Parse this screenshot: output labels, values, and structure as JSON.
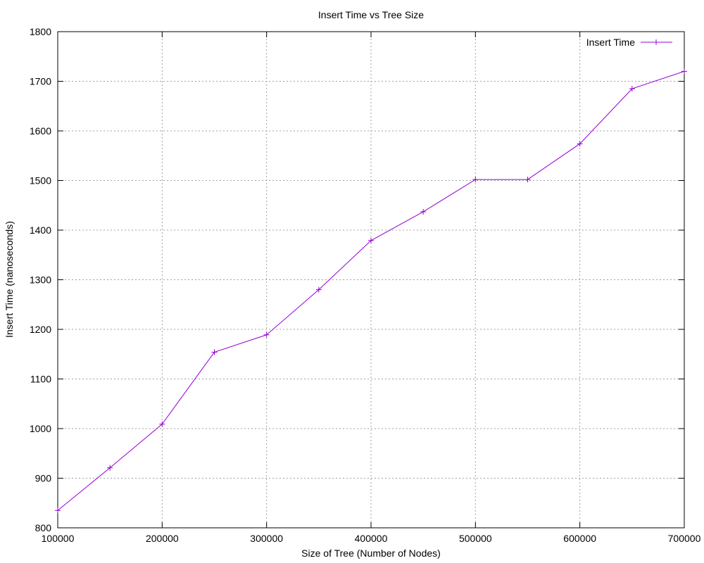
{
  "chart_data": {
    "type": "line",
    "title": "Insert Time vs Tree Size",
    "xlabel": "Size of Tree (Number of Nodes)",
    "ylabel": "Insert Time (nanoseconds)",
    "xlim": [
      100000,
      700000
    ],
    "ylim": [
      800,
      1800
    ],
    "xticks": [
      100000,
      200000,
      300000,
      400000,
      500000,
      600000,
      700000
    ],
    "yticks": [
      800,
      900,
      1000,
      1100,
      1200,
      1300,
      1400,
      1500,
      1600,
      1700,
      1800
    ],
    "grid": true,
    "legend_position": "top-right",
    "series": [
      {
        "name": "Insert Time",
        "color": "#9400d3",
        "marker": "plus",
        "x": [
          100000,
          150000,
          200000,
          250000,
          300000,
          350000,
          400000,
          450000,
          500000,
          550000,
          600000,
          650000,
          700000
        ],
        "y": [
          835,
          921,
          1009,
          1154,
          1189,
          1280,
          1379,
          1437,
          1502,
          1502,
          1574,
          1685,
          1720
        ]
      }
    ]
  }
}
